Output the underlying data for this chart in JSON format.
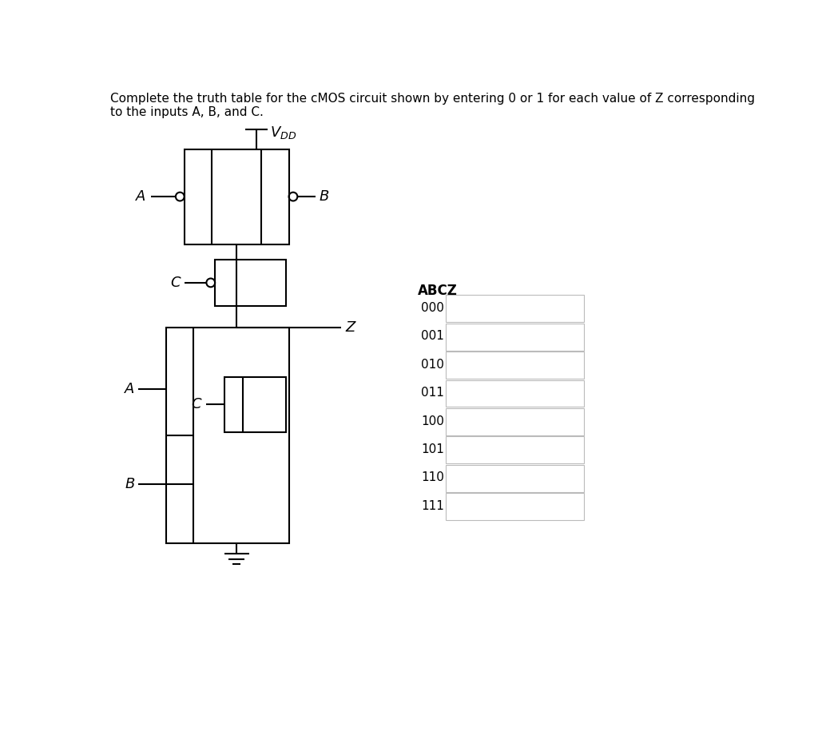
{
  "title_text": "Complete the truth table for the cMOS circuit shown by entering 0 or 1 for each value of Z corresponding\nto the inputs A, B, and C.",
  "title_fontsize": 11,
  "background_color": "#ffffff",
  "truth_table": {
    "header": "ABCZ",
    "rows": [
      "000",
      "001",
      "010",
      "011",
      "100",
      "101",
      "110",
      "111"
    ]
  },
  "circuit_color": "#000000",
  "label_color": "#000000"
}
